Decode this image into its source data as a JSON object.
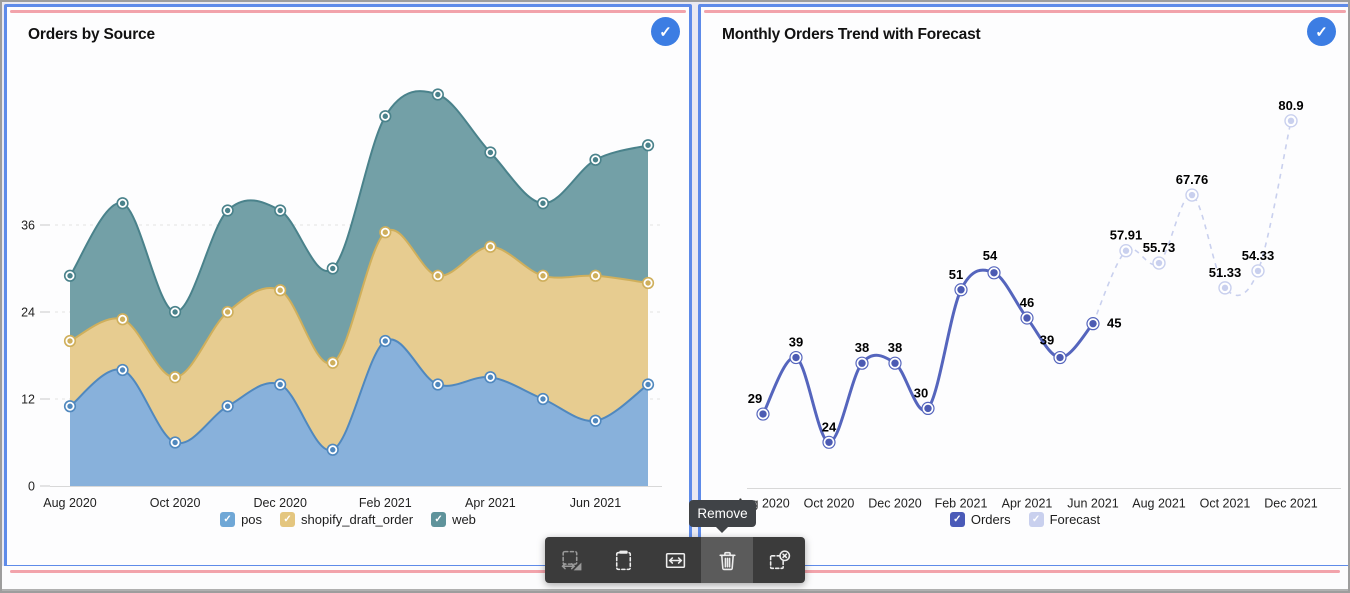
{
  "colors": {
    "panel_border": "#5E8BE9",
    "accent_line": "#F2A3AB",
    "selected_badge": "#3C7DE3",
    "canvas_gap": "#E9E9F2",
    "toolbar_bg": "#3B3B3B",
    "toolbar_hover": "#5B5B5B",
    "tooltip_bg": "#404347"
  },
  "badges": {
    "check_glyph": "✓"
  },
  "tooltip": {
    "label": "Remove"
  },
  "toolbar": {
    "buttons": [
      {
        "icon": "resize-icon",
        "state": "disabled"
      },
      {
        "icon": "paste-icon",
        "state": "normal"
      },
      {
        "icon": "fit-width-icon",
        "state": "normal"
      },
      {
        "icon": "trash-icon",
        "state": "hovered",
        "tooltip": "Remove"
      },
      {
        "icon": "deselect-icon",
        "state": "normal"
      }
    ]
  },
  "chart_data": [
    {
      "type": "area",
      "stacked": true,
      "title": "Orders by Source",
      "categories": [
        "Aug 2020",
        "Sep 2020",
        "Oct 2020",
        "Nov 2020",
        "Dec 2020",
        "Jan 2021",
        "Feb 2021",
        "Mar 2021",
        "Apr 2021",
        "May 2021",
        "Jun 2021",
        "Jul 2021"
      ],
      "x_tick_labels": [
        "Aug 2020",
        "Oct 2020",
        "Dec 2020",
        "Feb 2021",
        "Apr 2021",
        "Jun 2021"
      ],
      "series": [
        {
          "name": "pos",
          "values": [
            11,
            16,
            6,
            11,
            14,
            5,
            20,
            14,
            15,
            12,
            9,
            14
          ],
          "fill": "#88B1DB",
          "stroke": "#5088BE",
          "legend_color": "#6FA7D6",
          "checked": true
        },
        {
          "name": "shopify_draft_order",
          "values": [
            9,
            7,
            9,
            13,
            13,
            12,
            15,
            15,
            18,
            17,
            20,
            14
          ],
          "fill": "#E7CC90",
          "stroke": "#CFAF5C",
          "legend_color": "#E4C67F",
          "checked": true
        },
        {
          "name": "web",
          "values": [
            9,
            16,
            9,
            14,
            11,
            13,
            16,
            25,
            13,
            10,
            16,
            19
          ],
          "fill": "#73A0A7",
          "stroke": "#4A828B",
          "legend_color": "#5F939B",
          "checked": true
        }
      ],
      "y_ticks": [
        0,
        12,
        24,
        36
      ],
      "ylim": [
        0,
        57
      ],
      "grid": "horizontal-dashed",
      "legend_position": "bottom"
    },
    {
      "type": "line",
      "title": "Monthly Orders Trend with Forecast",
      "categories": [
        "Aug 2020",
        "Sep 2020",
        "Oct 2020",
        "Nov 2020",
        "Dec 2020",
        "Jan 2021",
        "Feb 2021",
        "Mar 2021",
        "Apr 2021",
        "May 2021",
        "Jun 2021",
        "Jul 2021",
        "Aug 2021",
        "Sep 2021",
        "Oct 2021",
        "Nov 2021",
        "Dec 2021"
      ],
      "x_tick_labels": [
        "Aug 2020",
        "Oct 2020",
        "Dec 2020",
        "Feb 2021",
        "Apr 2021",
        "Jun 2021",
        "Aug 2021",
        "Oct 2021",
        "Dec 2021"
      ],
      "series": [
        {
          "name": "Orders",
          "style": "solid",
          "color": "#5565BD",
          "marker_fill": "#4C5BB3",
          "legend_color": "#4A5AB8",
          "checked": true,
          "values": [
            29,
            39,
            24,
            38,
            38,
            30,
            51,
            54,
            46,
            39,
            45
          ]
        },
        {
          "name": "Forecast",
          "style": "dashed",
          "color": "#C9D0EE",
          "marker_fill": "#C9D0EE",
          "legend_color": "#C9D0EE",
          "checked": true,
          "start_index": 11,
          "values": [
            57.91,
            55.73,
            67.76,
            51.33,
            54.33,
            80.9
          ]
        }
      ],
      "value_labels_visible": true,
      "ylim": [
        16,
        86
      ],
      "grid": "none",
      "legend_position": "bottom"
    }
  ]
}
